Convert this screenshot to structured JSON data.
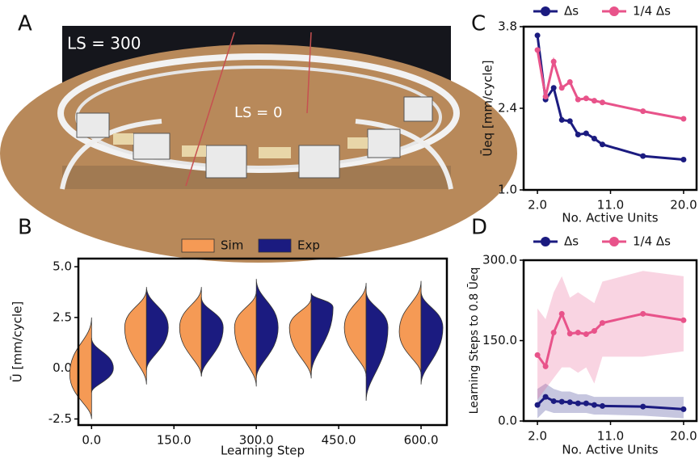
{
  "chart_data": [
    {
      "type": "image",
      "panel_label": "A",
      "annotations": [
        "LS = 300",
        "LS = 0"
      ]
    },
    {
      "type": "violin",
      "panel_label": "B",
      "xlabel": "Learning Step",
      "ylabel": "Ū [mm/cycle]",
      "x": [
        0,
        100,
        200,
        300,
        400,
        500,
        600
      ],
      "series": [
        {
          "name": "Sim",
          "color": "#f59a55",
          "min": [
            -2.5,
            -0.8,
            -0.4,
            -0.9,
            -0.5,
            -0.4,
            -0.3
          ],
          "peak": [
            -0.3,
            2.0,
            2.0,
            2.0,
            2.0,
            2.0,
            1.8
          ],
          "max": [
            2.5,
            3.9,
            4.0,
            3.8,
            3.5,
            4.2,
            4.3
          ]
        },
        {
          "name": "Exp",
          "color": "#1b1b80",
          "min": [
            -1.2,
            -0.1,
            -0.4,
            -0.5,
            -0.3,
            -1.6,
            -0.8
          ],
          "peak": [
            0.0,
            2.0,
            2.0,
            2.0,
            3.0,
            2.0,
            2.0
          ],
          "max": [
            1.5,
            4.0,
            3.5,
            4.4,
            3.7,
            3.8,
            3.8
          ]
        }
      ],
      "xlim": [
        -24,
        647
      ],
      "ylim": [
        -2.8,
        5.4
      ],
      "xticks": [
        {
          "value": 0,
          "label": "0.0"
        },
        {
          "value": 150,
          "label": "150.0"
        },
        {
          "value": 300,
          "label": "300.0"
        },
        {
          "value": 450,
          "label": "450.0"
        },
        {
          "value": 600,
          "label": "600.0"
        }
      ],
      "yticks": [
        -2.5,
        {
          "value": 0,
          "label": "0.0"
        },
        2.5,
        {
          "value": 5,
          "label": "5.0"
        }
      ]
    },
    {
      "type": "line",
      "panel_label": "C",
      "xlabel": "No. Active Units",
      "ylabel": "Ūeq [mm/cycle]",
      "x": [
        2,
        3,
        4,
        5,
        6,
        7,
        8,
        9,
        10,
        15,
        20
      ],
      "series": [
        {
          "name": "Δs",
          "color": "#1b1b80",
          "values": [
            3.65,
            2.55,
            2.75,
            2.2,
            2.18,
            1.95,
            1.97,
            1.88,
            1.78,
            1.58,
            1.52
          ]
        },
        {
          "name": "1/4 Δs",
          "color": "#e8538a",
          "values": [
            3.4,
            2.6,
            3.2,
            2.75,
            2.85,
            2.55,
            2.57,
            2.53,
            2.5,
            2.35,
            2.22
          ]
        }
      ],
      "xlim": [
        0.3,
        21.6
      ],
      "ylim": [
        1.0,
        3.8
      ],
      "xticks": [
        {
          "value": 2,
          "label": "2.0"
        },
        {
          "value": 11,
          "label": "11.0"
        },
        {
          "value": 20,
          "label": "20.0"
        }
      ],
      "yticks": [
        {
          "value": 1,
          "label": "1.0"
        },
        2.4,
        3.8
      ]
    },
    {
      "type": "line",
      "panel_label": "D",
      "xlabel": "No. Active Units",
      "ylabel": "Learning Steps to 0.8 Ūeq",
      "x": [
        2,
        3,
        4,
        5,
        6,
        7,
        8,
        9,
        10,
        15,
        20
      ],
      "series": [
        {
          "name": "Δs",
          "color": "#1b1b80",
          "values": [
            30,
            45,
            37,
            36,
            35,
            33,
            33,
            30,
            28,
            27,
            22
          ],
          "lower": [
            5,
            20,
            15,
            15,
            15,
            15,
            15,
            12,
            12,
            10,
            5
          ],
          "upper": [
            60,
            70,
            60,
            55,
            55,
            50,
            50,
            45,
            45,
            45,
            45
          ]
        },
        {
          "name": "1/4 Δs",
          "color": "#e8538a",
          "values": [
            123,
            102,
            165,
            200,
            163,
            165,
            162,
            168,
            183,
            200,
            188
          ],
          "lower": [
            40,
            60,
            80,
            100,
            100,
            90,
            100,
            70,
            120,
            120,
            130
          ],
          "upper": [
            210,
            190,
            240,
            270,
            230,
            240,
            230,
            220,
            260,
            280,
            270
          ]
        }
      ],
      "xlim": [
        0.3,
        21.6
      ],
      "ylim": [
        0,
        300
      ],
      "xticks": [
        {
          "value": 2,
          "label": "2.0"
        },
        {
          "value": 11,
          "label": "11.0"
        },
        {
          "value": 20,
          "label": "20.0"
        }
      ],
      "yticks": [
        {
          "value": 0,
          "label": "0.0"
        },
        {
          "value": 150,
          "label": "150.0"
        },
        {
          "value": 300,
          "label": "300.0"
        }
      ]
    }
  ]
}
